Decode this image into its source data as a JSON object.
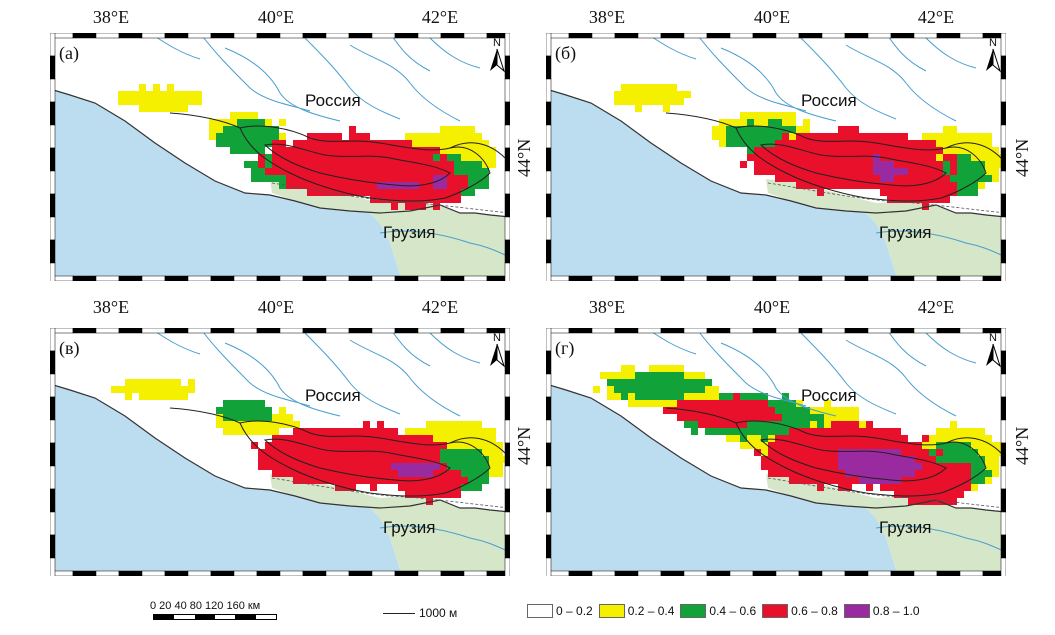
{
  "colors": {
    "sea": "#bcdcf0",
    "georgia": "#d5e7c8",
    "russia": "#ffffff",
    "river": "#4a9ed0",
    "contour": "#222222",
    "border": "#555555"
  },
  "map": {
    "lon_labels": [
      "38°E",
      "40°E",
      "42°E"
    ],
    "lat_label": "44°N",
    "north_label": "N",
    "country_russia": "Россия",
    "country_georgia": "Грузия"
  },
  "panels": [
    {
      "label": "(а)",
      "scenario": "a"
    },
    {
      "label": "(б)",
      "scenario": "b"
    },
    {
      "label": "(в)",
      "scenario": "c"
    },
    {
      "label": "(г)",
      "scenario": "d"
    }
  ],
  "legend": {
    "scale_numbers": "0 20 40    80    120  160 км",
    "contour_label": "1000 м",
    "classes": [
      {
        "label": "0 – 0.2",
        "color": "#ffffff"
      },
      {
        "label": "0.2 – 0.4",
        "color": "#f5f000"
      },
      {
        "label": "0.4 – 0.6",
        "color": "#12a23a"
      },
      {
        "label": "0.6 – 0.8",
        "color": "#e8102a"
      },
      {
        "label": "0.8 – 1.0",
        "color": "#9a2aa0"
      }
    ]
  }
}
